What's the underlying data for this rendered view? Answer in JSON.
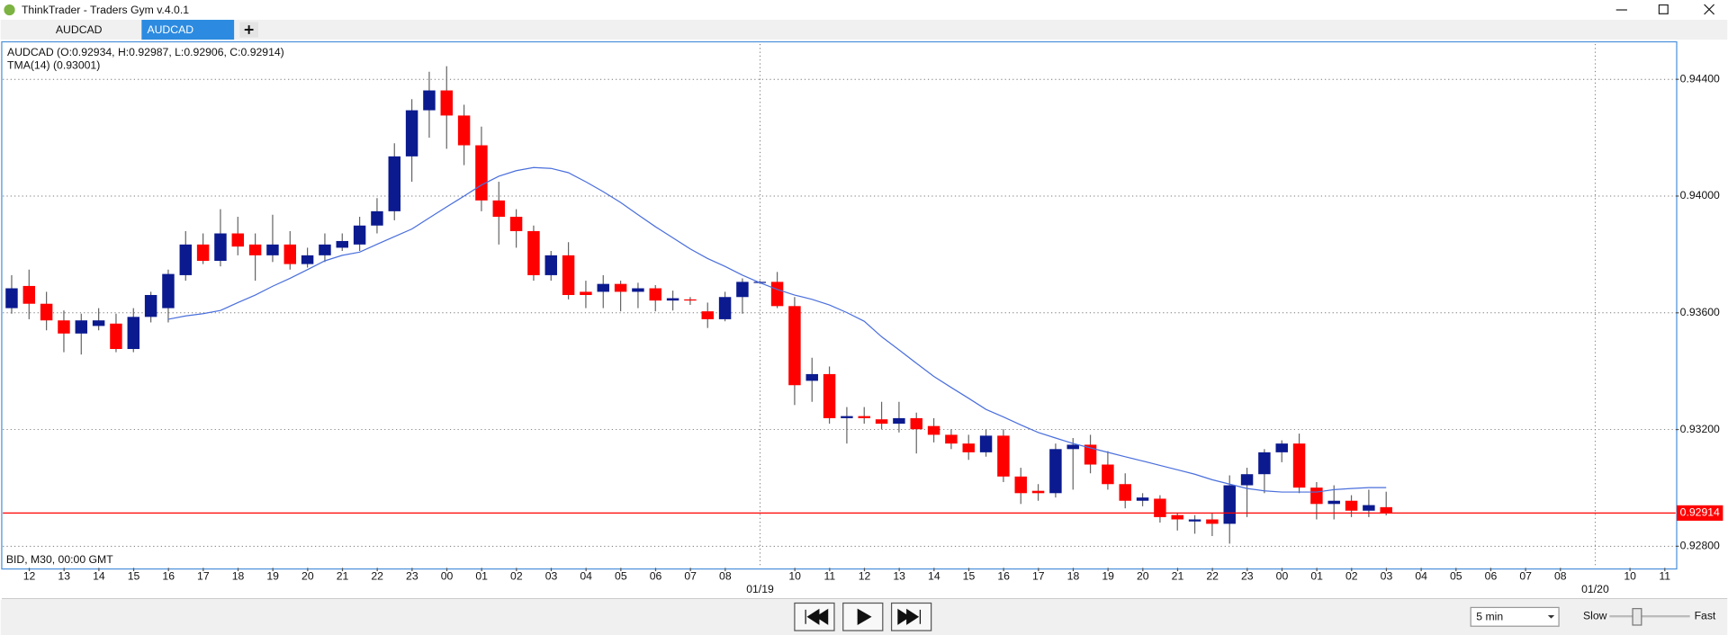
{
  "window": {
    "title": "ThinkTrader - Traders Gym v.4.0.1",
    "tabs": [
      "AUDCAD",
      "AUDCAD"
    ]
  },
  "chart_data": {
    "type": "candlestick",
    "ohlc_label": "AUDCAD (O:0.92934, H:0.92987, L:0.92906, C:0.92914)",
    "indicator_label": "TMA(14) (0.93001)",
    "feed_label": "BID, M30, 00:00 GMT",
    "up_color": "#0b1a8f",
    "down_color": "#ff0000",
    "open": [
      0.93616,
      0.93692,
      0.93631,
      0.93574,
      0.93529,
      0.93555,
      0.93563,
      0.93476,
      0.93586,
      0.93616,
      0.93729,
      0.93834,
      0.93778,
      0.93872,
      0.93834,
      0.93797,
      0.93834,
      0.93767,
      0.93797,
      0.93823,
      0.93834,
      0.93899,
      0.93948,
      0.94136,
      0.94294,
      0.94362,
      0.94276,
      0.94174,
      0.93985,
      0.93929,
      0.9388,
      0.93729,
      0.93797,
      0.93672,
      0.93672,
      0.93699,
      0.93672,
      0.93684,
      0.93642,
      0.93646,
      0.93605,
      0.93578,
      0.93654,
      0.93703,
      0.93706,
      0.93623,
      0.93367,
      0.9339,
      0.93239,
      0.93246,
      0.93235,
      0.9322,
      0.93239,
      0.93212,
      0.93182,
      0.93152,
      0.93122,
      0.93179,
      0.93039,
      0.9299,
      0.92982,
      0.93133,
      0.93148,
      0.9308,
      0.93013,
      0.92956,
      0.92963,
      0.92907,
      0.92885,
      0.92892,
      0.92877,
      0.93009,
      0.93047,
      0.93122,
      0.93152,
      0.93001,
      0.92945,
      0.92956,
      0.92922,
      0.92934
    ],
    "high": [
      0.93729,
      0.93748,
      0.93672,
      0.93608,
      0.93597,
      0.93616,
      0.93597,
      0.93616,
      0.93672,
      0.93748,
      0.9388,
      0.93872,
      0.93955,
      0.93929,
      0.93872,
      0.93936,
      0.9388,
      0.93823,
      0.93872,
      0.93872,
      0.93929,
      0.93993,
      0.94181,
      0.94332,
      0.94426,
      0.94445,
      0.94313,
      0.94238,
      0.94049,
      0.93955,
      0.93899,
      0.93812,
      0.93842,
      0.9371,
      0.93729,
      0.9371,
      0.93703,
      0.93695,
      0.93676,
      0.93654,
      0.93635,
      0.93672,
      0.93718,
      0.9371,
      0.9374,
      0.93654,
      0.93446,
      0.93416,
      0.93277,
      0.93277,
      0.93295,
      0.93295,
      0.93258,
      0.93239,
      0.93201,
      0.93182,
      0.93201,
      0.93201,
      0.93069,
      0.93013,
      0.93152,
      0.93171,
      0.93182,
      0.93126,
      0.9305,
      0.92982,
      0.92975,
      0.92915,
      0.92907,
      0.92915,
      0.93043,
      0.93069,
      0.93133,
      0.93163,
      0.93186,
      0.9302,
      0.93009,
      0.92975,
      0.92994,
      0.92987
    ],
    "low": [
      0.93597,
      0.93578,
      0.9354,
      0.93465,
      0.93457,
      0.9354,
      0.93465,
      0.93465,
      0.93567,
      0.93567,
      0.9371,
      0.93767,
      0.93759,
      0.93797,
      0.9371,
      0.93774,
      0.93748,
      0.93755,
      0.93774,
      0.93812,
      0.93812,
      0.93872,
      0.93917,
      0.94049,
      0.942,
      0.94162,
      0.94106,
      0.93948,
      0.93834,
      0.93823,
      0.9371,
      0.9371,
      0.93646,
      0.93616,
      0.93616,
      0.93605,
      0.93616,
      0.93605,
      0.93608,
      0.93627,
      0.93548,
      0.93571,
      0.93597,
      0.93699,
      0.93616,
      0.93284,
      0.93295,
      0.9322,
      0.93152,
      0.9322,
      0.93201,
      0.9319,
      0.93118,
      0.93156,
      0.93133,
      0.93096,
      0.93107,
      0.9302,
      0.92945,
      0.92956,
      0.92967,
      0.92994,
      0.9305,
      0.92994,
      0.9293,
      0.92937,
      0.92881,
      0.92854,
      0.92843,
      0.92835,
      0.92809,
      0.929,
      0.92982,
      0.93088,
      0.92982,
      0.92892,
      0.92892,
      0.929,
      0.929,
      0.92906
    ],
    "close": [
      0.93684,
      0.93631,
      0.93574,
      0.93529,
      0.93574,
      0.93574,
      0.93476,
      0.93586,
      0.93661,
      0.93733,
      0.93834,
      0.93778,
      0.93872,
      0.93827,
      0.93797,
      0.93834,
      0.93767,
      0.93797,
      0.93834,
      0.93846,
      0.93899,
      0.93948,
      0.94136,
      0.94294,
      0.94362,
      0.94276,
      0.94174,
      0.93985,
      0.93929,
      0.9388,
      0.93729,
      0.93797,
      0.93661,
      0.93661,
      0.93699,
      0.93672,
      0.93684,
      0.93642,
      0.9365,
      0.93642,
      0.93578,
      0.93654,
      0.93706,
      0.93706,
      0.93623,
      0.93352,
      0.9339,
      0.93239,
      0.93246,
      0.93239,
      0.9322,
      0.93239,
      0.93201,
      0.93182,
      0.93152,
      0.93122,
      0.93179,
      0.93039,
      0.92982,
      0.92982,
      0.93133,
      0.93148,
      0.9308,
      0.93013,
      0.92956,
      0.92967,
      0.929,
      0.92892,
      0.92892,
      0.92877,
      0.93009,
      0.93047,
      0.93122,
      0.93152,
      0.93001,
      0.92945,
      0.92956,
      0.92922,
      0.92941,
      0.92914
    ],
    "indicator": {
      "color": "#4a6fdc",
      "values": [
        null,
        null,
        null,
        null,
        null,
        null,
        null,
        null,
        null,
        0.93578,
        0.93589,
        0.93597,
        0.93608,
        0.93635,
        0.93661,
        0.93691,
        0.93718,
        0.93748,
        0.93778,
        0.93797,
        0.93808,
        0.93835,
        0.93861,
        0.93887,
        0.93925,
        0.93963,
        0.94,
        0.94038,
        0.94068,
        0.94087,
        0.94098,
        0.94095,
        0.9408,
        0.94049,
        0.94015,
        0.93978,
        0.93936,
        0.93895,
        0.93857,
        0.93819,
        0.93786,
        0.93759,
        0.93729,
        0.93703,
        0.9368,
        0.93661,
        0.93646,
        0.93627,
        0.93601,
        0.93571,
        0.93518,
        0.93473,
        0.93427,
        0.93382,
        0.93344,
        0.93307,
        0.93269,
        0.93243,
        0.93216,
        0.9319,
        0.93171,
        0.93152,
        0.93137,
        0.93122,
        0.93107,
        0.93092,
        0.93077,
        0.93062,
        0.93047,
        0.93028,
        0.93013,
        0.92998,
        0.9299,
        0.92986,
        0.92986,
        0.92986,
        0.92994,
        0.92998,
        0.93001,
        0.93001
      ]
    },
    "bid_price": 0.92914,
    "bid_color": "#ff0000",
    "ylim": [
      0.92726,
      0.94521
    ],
    "yticks": [
      {
        "value": 0.928,
        "label": "0.92800"
      },
      {
        "value": 0.932,
        "label": "0.93200"
      },
      {
        "value": 0.936,
        "label": "0.93600"
      },
      {
        "value": 0.94,
        "label": "0.94000"
      },
      {
        "value": 0.944,
        "label": "0.94400"
      }
    ],
    "grid": true,
    "x_axis": {
      "hours": [
        "12",
        "13",
        "14",
        "15",
        "16",
        "17",
        "18",
        "19",
        "20",
        "21",
        "22",
        "23",
        "00",
        "01",
        "02",
        "03",
        "04",
        "05",
        "06",
        "07",
        "08",
        null,
        "10",
        "11",
        "12",
        "13",
        "14",
        "15",
        "16",
        "17",
        "18",
        "19",
        "20",
        "21",
        "22",
        "23",
        "00",
        "01",
        "02",
        "03",
        "04",
        "05",
        "06",
        "07",
        "08",
        null,
        "10",
        "11"
      ],
      "dates": [
        "01/19",
        "01/20"
      ]
    }
  },
  "controls": {
    "speed": "5 min",
    "slow": "Slow",
    "fast": "Fast"
  }
}
